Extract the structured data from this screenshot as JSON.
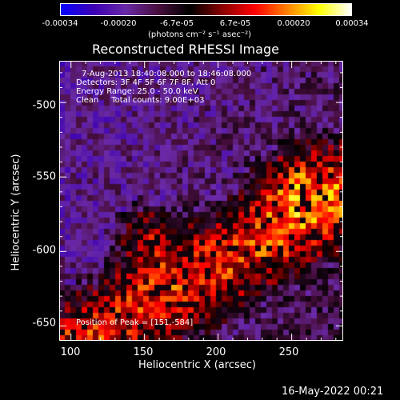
{
  "colorbar": {
    "ticks": [
      "-0.00034",
      "-0.00020",
      "-6.7e-05",
      "6.7e-05",
      "0.00020",
      "0.00034"
    ],
    "unit_label": "(photons cm⁻² s⁻¹ asec⁻²)"
  },
  "plot": {
    "title": "Reconstructed RHESSI Image",
    "xlabel": "Heliocentric X (arcsec)",
    "ylabel": "Heliocentric Y (arcsec)"
  },
  "info": {
    "line1": "7-Aug-2013 18:40:08.000 to 18:46:08.000",
    "line2": "Detectors: 3F 4F 5F 6F 7F 8F, Att 0",
    "line3": "Energy Range: 25.0 - 50.0 keV",
    "line4": "Clean     Total counts: 9.00E+03",
    "peak": "Position of Peak = [151,-584]"
  },
  "footer": {
    "timestamp": "16-May-2022 00:21"
  },
  "chart_data": {
    "type": "heatmap",
    "title": "Reconstructed RHESSI Image",
    "xlabel": "Heliocentric X (arcsec)",
    "ylabel": "Heliocentric Y (arcsec)",
    "xlim": [
      92,
      285
    ],
    "ylim": [
      -660,
      -472
    ],
    "x_ticks": [
      100,
      150,
      200,
      250
    ],
    "y_ticks": [
      -500,
      -550,
      -600,
      -650
    ],
    "colorbar_range": [
      -0.00034,
      0.00034
    ],
    "colormap": [
      "#0a00ff",
      "#3c00b4",
      "#6a2aa8",
      "#4a0f40",
      "#000000",
      "#8a0000",
      "#ff0000",
      "#ff8000",
      "#ffff00",
      "#ffffff"
    ],
    "peak_position": [
      151,
      -584
    ]
  }
}
